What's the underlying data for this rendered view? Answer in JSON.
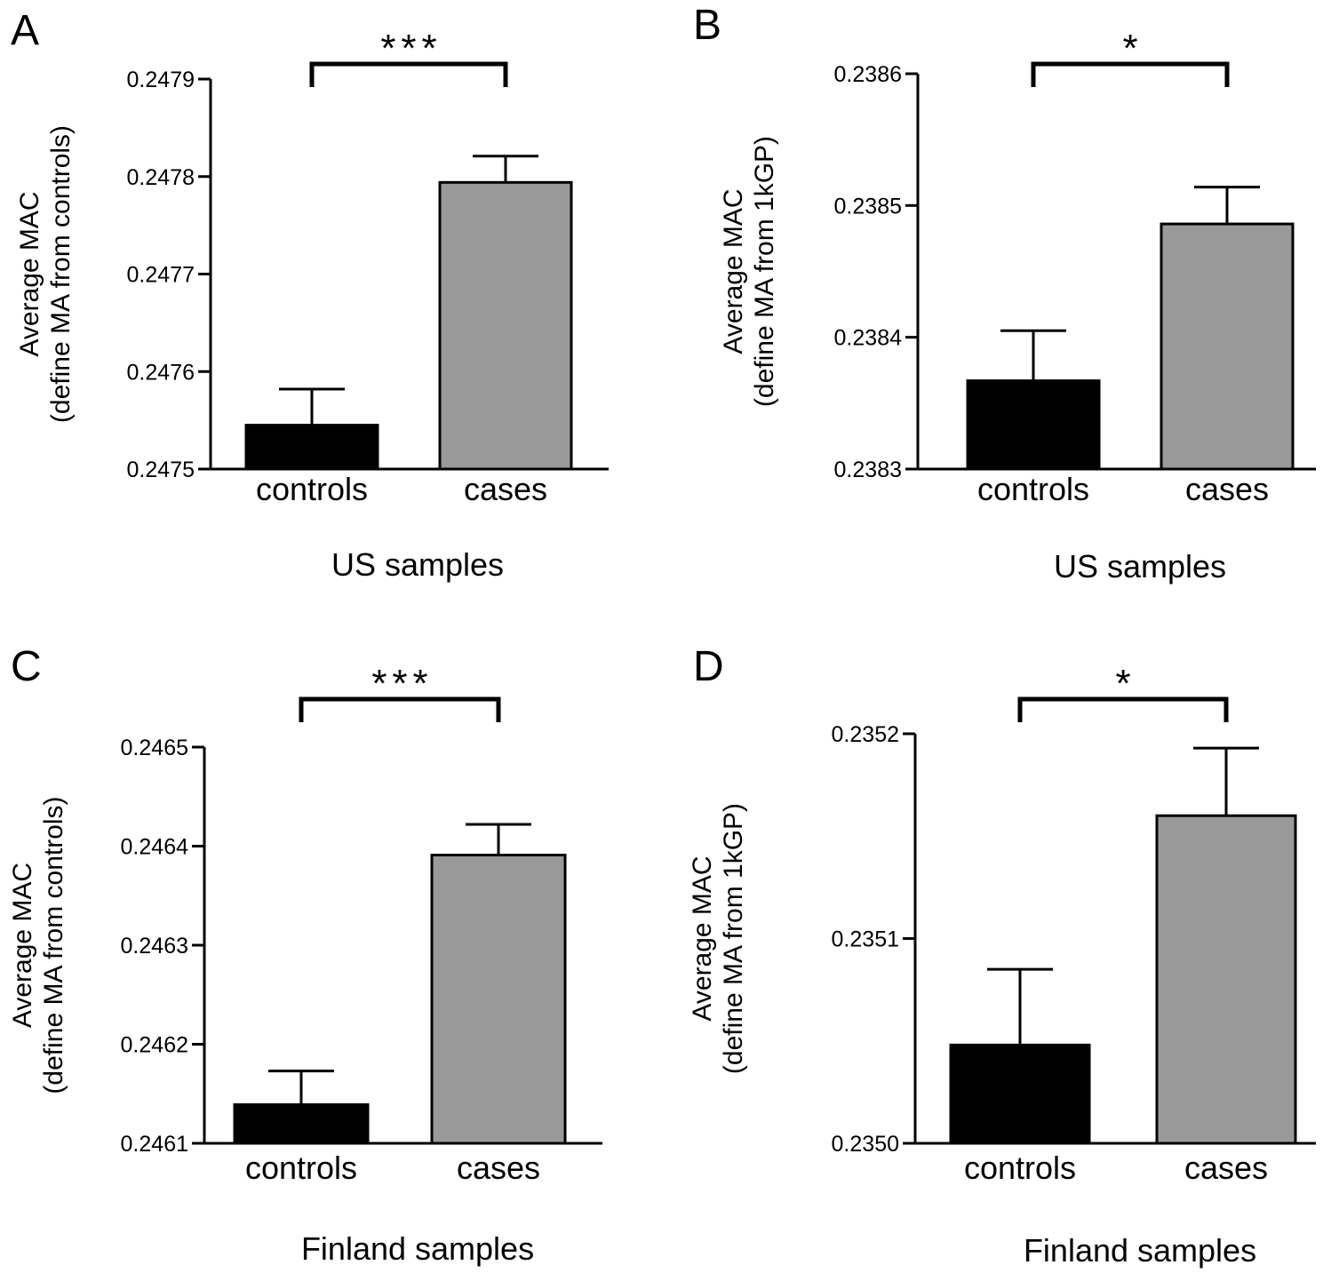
{
  "chart_data": [
    {
      "panel": "A",
      "type": "bar",
      "categories": [
        "controls",
        "cases"
      ],
      "values": [
        0.247545,
        0.247794
      ],
      "errors": [
        3.7e-05,
        2.7e-05
      ],
      "bar_colors": [
        "#000000",
        "#999999"
      ],
      "ylim": [
        0.2475,
        0.2479
      ],
      "yticks": [
        "0.2475",
        "0.2476",
        "0.2477",
        "0.2478",
        "0.2479"
      ],
      "ylabel_line1": "Average MAC",
      "ylabel_line2": "(define MA from controls)",
      "xlabel": "US samples",
      "significance": "***"
    },
    {
      "panel": "B",
      "type": "bar",
      "categories": [
        "controls",
        "cases"
      ],
      "values": [
        0.238367,
        0.238486
      ],
      "errors": [
        3.8e-05,
        2.8e-05
      ],
      "bar_colors": [
        "#000000",
        "#999999"
      ],
      "ylim": [
        0.2383,
        0.2386
      ],
      "yticks": [
        "0.2383",
        "0.2384",
        "0.2385",
        "0.2386"
      ],
      "ylabel_line1": "Average MAC",
      "ylabel_line2": "(define MA from 1kGP)",
      "xlabel": "US samples",
      "significance": "*"
    },
    {
      "panel": "C",
      "type": "bar",
      "categories": [
        "controls",
        "cases"
      ],
      "values": [
        0.246139,
        0.246391
      ],
      "errors": [
        3.4e-05,
        3.1e-05
      ],
      "bar_colors": [
        "#000000",
        "#999999"
      ],
      "ylim": [
        0.2461,
        0.2465
      ],
      "yticks": [
        "0.2461",
        "0.2462",
        "0.2463",
        "0.2464",
        "0.2465"
      ],
      "ylabel_line1": "Average MAC",
      "ylabel_line2": "(define MA from controls)",
      "xlabel": "Finland samples",
      "significance": "***"
    },
    {
      "panel": "D",
      "type": "bar",
      "categories": [
        "controls",
        "cases"
      ],
      "values": [
        0.235048,
        0.23516
      ],
      "errors": [
        3.7e-05,
        3.3e-05
      ],
      "bar_colors": [
        "#000000",
        "#999999"
      ],
      "ylim": [
        0.235,
        0.2352
      ],
      "yticks": [
        "0.2350",
        "0.2351",
        "0.2352"
      ],
      "ylabel_line1": "Average MAC",
      "ylabel_line2": "(define MA from 1kGP)",
      "xlabel": "Finland samples",
      "significance": "*"
    }
  ]
}
